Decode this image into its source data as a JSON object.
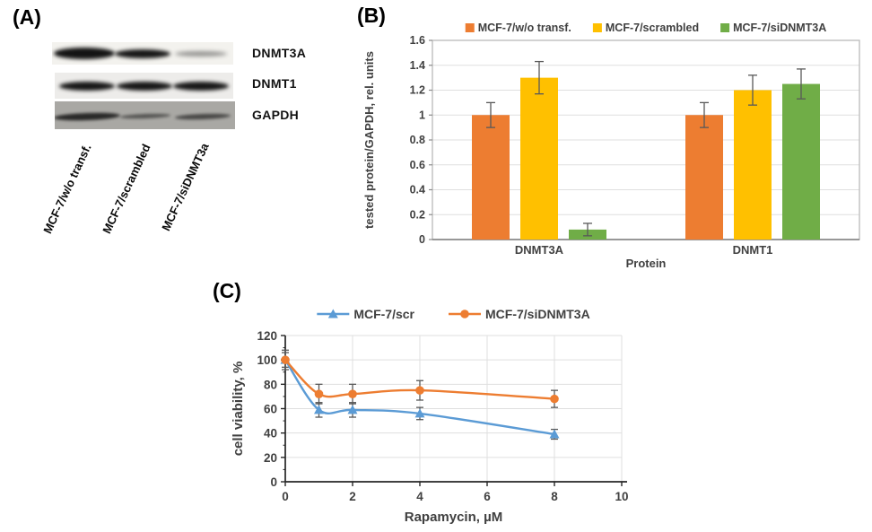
{
  "panels": {
    "a": "(A)",
    "b": "(B)",
    "c": "(C)"
  },
  "colors": {
    "orange": "#ED7D31",
    "yellow": "#FFC000",
    "green": "#70AD47",
    "blue": "#5B9BD5",
    "axis_text": "#404040",
    "grid": "#DFDFDF",
    "frame": "#BFBFBF",
    "error_bar": "#595959",
    "axis_line": "#262626"
  },
  "blot": {
    "rows": [
      {
        "label": "DNMT3A",
        "bands": [
          "strong-wide",
          "strong",
          "faint"
        ]
      },
      {
        "label": "DNMT1",
        "bands": [
          "strong",
          "strong",
          "strong"
        ]
      },
      {
        "label": "GAPDH",
        "bands": [
          "strong-thin",
          "medium-thin",
          "medium"
        ]
      }
    ],
    "lane_labels": [
      "MCF-7/w/o transf.",
      "MCF-7/scrambled",
      "MCF-7/siDNMT3a"
    ]
  },
  "chart_data": [
    {
      "id": "bar-chart-b",
      "type": "bar",
      "categories": [
        "DNMT3A",
        "DNMT1"
      ],
      "series": [
        {
          "name": "MCF-7/w/o transf.",
          "color": "#ED7D31",
          "values": [
            1.0,
            1.0
          ],
          "errors": [
            0.1,
            0.1
          ]
        },
        {
          "name": "MCF-7/scrambled",
          "color": "#FFC000",
          "values": [
            1.3,
            1.2
          ],
          "errors": [
            0.13,
            0.12
          ]
        },
        {
          "name": "MCF-7/siDNMT3A",
          "color": "#70AD47",
          "values": [
            0.08,
            1.25
          ],
          "errors": [
            0.05,
            0.12
          ]
        }
      ],
      "xlabel": "Protein",
      "ylabel": "tested protein/GAPDH, rel. units",
      "ylim": [
        0,
        1.6
      ],
      "ytick_step": 0.2,
      "grid": true,
      "legend_position": "top"
    },
    {
      "id": "line-chart-c",
      "type": "line",
      "x": [
        0,
        1,
        2,
        4,
        8
      ],
      "series": [
        {
          "name": "MCF-7/scr",
          "color": "#5B9BD5",
          "marker": "triangle",
          "values": [
            100,
            59,
            59,
            56,
            39
          ],
          "errors": [
            8,
            6,
            6,
            5,
            4
          ]
        },
        {
          "name": "MCF-7/siDNMT3A",
          "color": "#ED7D31",
          "marker": "circle",
          "values": [
            100,
            72,
            72,
            75,
            68
          ],
          "errors": [
            6,
            8,
            8,
            8,
            7
          ]
        }
      ],
      "xlabel": "Rapamycin, µM",
      "ylabel": "cell viability, %",
      "xlim": [
        0,
        10
      ],
      "ylim": [
        0,
        120
      ],
      "xticks": [
        0,
        2,
        4,
        6,
        8,
        10
      ],
      "ytick_step": 20,
      "grid": true,
      "legend_position": "top"
    }
  ]
}
